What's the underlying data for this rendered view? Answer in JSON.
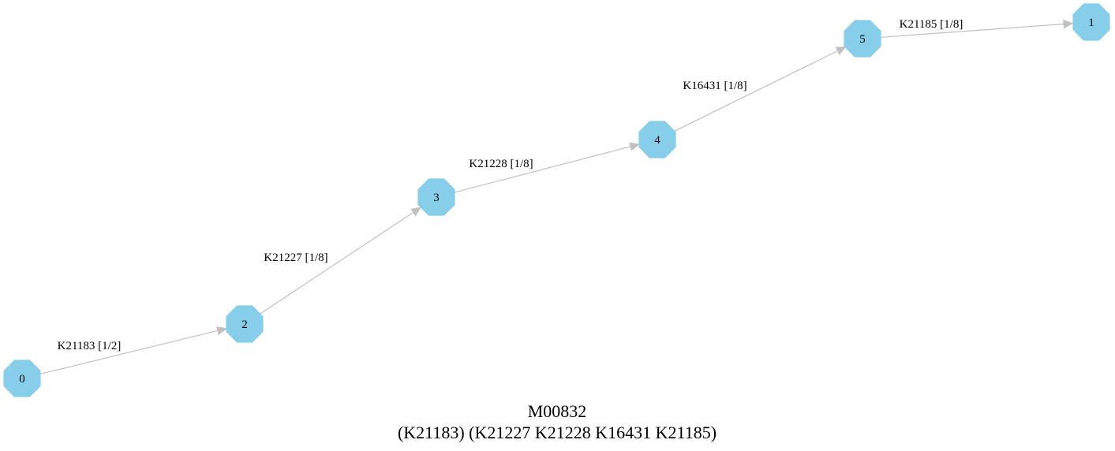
{
  "colors": {
    "node_fill": "#87ceeb",
    "edge": "#c0c0c0",
    "text": "#000000"
  },
  "nodes": [
    {
      "id": "0",
      "label": "0"
    },
    {
      "id": "2",
      "label": "2"
    },
    {
      "id": "3",
      "label": "3"
    },
    {
      "id": "4",
      "label": "4"
    },
    {
      "id": "5",
      "label": "5"
    },
    {
      "id": "1",
      "label": "1"
    }
  ],
  "edges": [
    {
      "from": "0",
      "to": "2",
      "label": "K21183 [1/2]"
    },
    {
      "from": "2",
      "to": "3",
      "label": "K21227 [1/8]"
    },
    {
      "from": "3",
      "to": "4",
      "label": "K21228 [1/8]"
    },
    {
      "from": "4",
      "to": "5",
      "label": "K16431 [1/8]"
    },
    {
      "from": "5",
      "to": "1",
      "label": "K21185 [1/8]"
    }
  ],
  "caption": {
    "title": "M00832",
    "subtitle": "(K21183) (K21227 K21228 K16431 K21185)"
  }
}
